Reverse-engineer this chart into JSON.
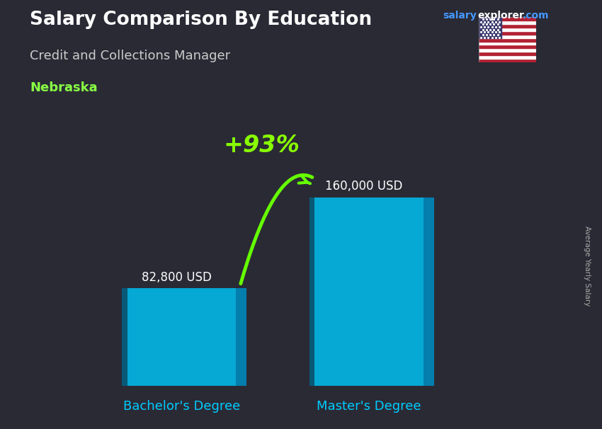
{
  "title": "Salary Comparison By Education",
  "subtitle": "Credit and Collections Manager",
  "location": "Nebraska",
  "categories": [
    "Bachelor's Degree",
    "Master's Degree"
  ],
  "values": [
    82800,
    160000
  ],
  "value_labels": [
    "82,800 USD",
    "160,000 USD"
  ],
  "bar_color_main": "#00C0F0",
  "bar_color_right": "#0088BB",
  "bar_color_left": "#006688",
  "percent_change": "+93%",
  "bg_color": "#2a2a35",
  "title_color": "#ffffff",
  "subtitle_color": "#cccccc",
  "location_color": "#88ff44",
  "label_color": "#ffffff",
  "xtick_color": "#00CCFF",
  "arrow_color": "#66ff00",
  "percent_color": "#88ff00",
  "ylabel": "Average Yearly Salary",
  "ylim": [
    0,
    200000
  ],
  "fig_width": 8.5,
  "fig_height": 6.06
}
